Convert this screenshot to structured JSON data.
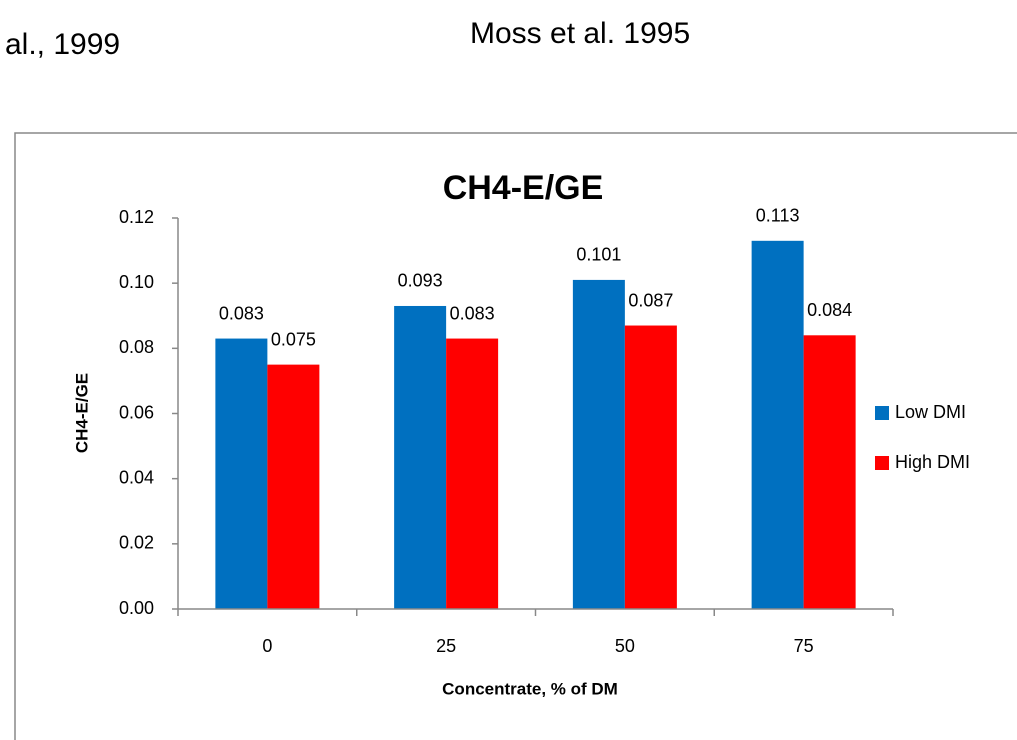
{
  "header": {
    "left_caption": "al., 1999",
    "right_caption": "Moss et al. 1995"
  },
  "chart_data": {
    "type": "bar",
    "title": "CH4-E/GE",
    "x_label": "Concentrate, % of DM",
    "y_label": "CH4-E/GE",
    "categories": [
      "0",
      "25",
      "50",
      "75"
    ],
    "series": [
      {
        "name": "Low DMI",
        "color": "#0070c0",
        "values": [
          0.083,
          0.093,
          0.101,
          0.113
        ]
      },
      {
        "name": "High DMI",
        "color": "#ff0000",
        "values": [
          0.075,
          0.083,
          0.087,
          0.084
        ]
      }
    ],
    "ylim": [
      0,
      0.12
    ],
    "yticks": [
      {
        "value": 0,
        "label": "0.00"
      },
      0.02,
      0.04,
      0.06,
      0.08,
      {
        "value": 0.1,
        "label": "0.10"
      },
      0.12
    ],
    "legend": "right",
    "grid": false
  }
}
